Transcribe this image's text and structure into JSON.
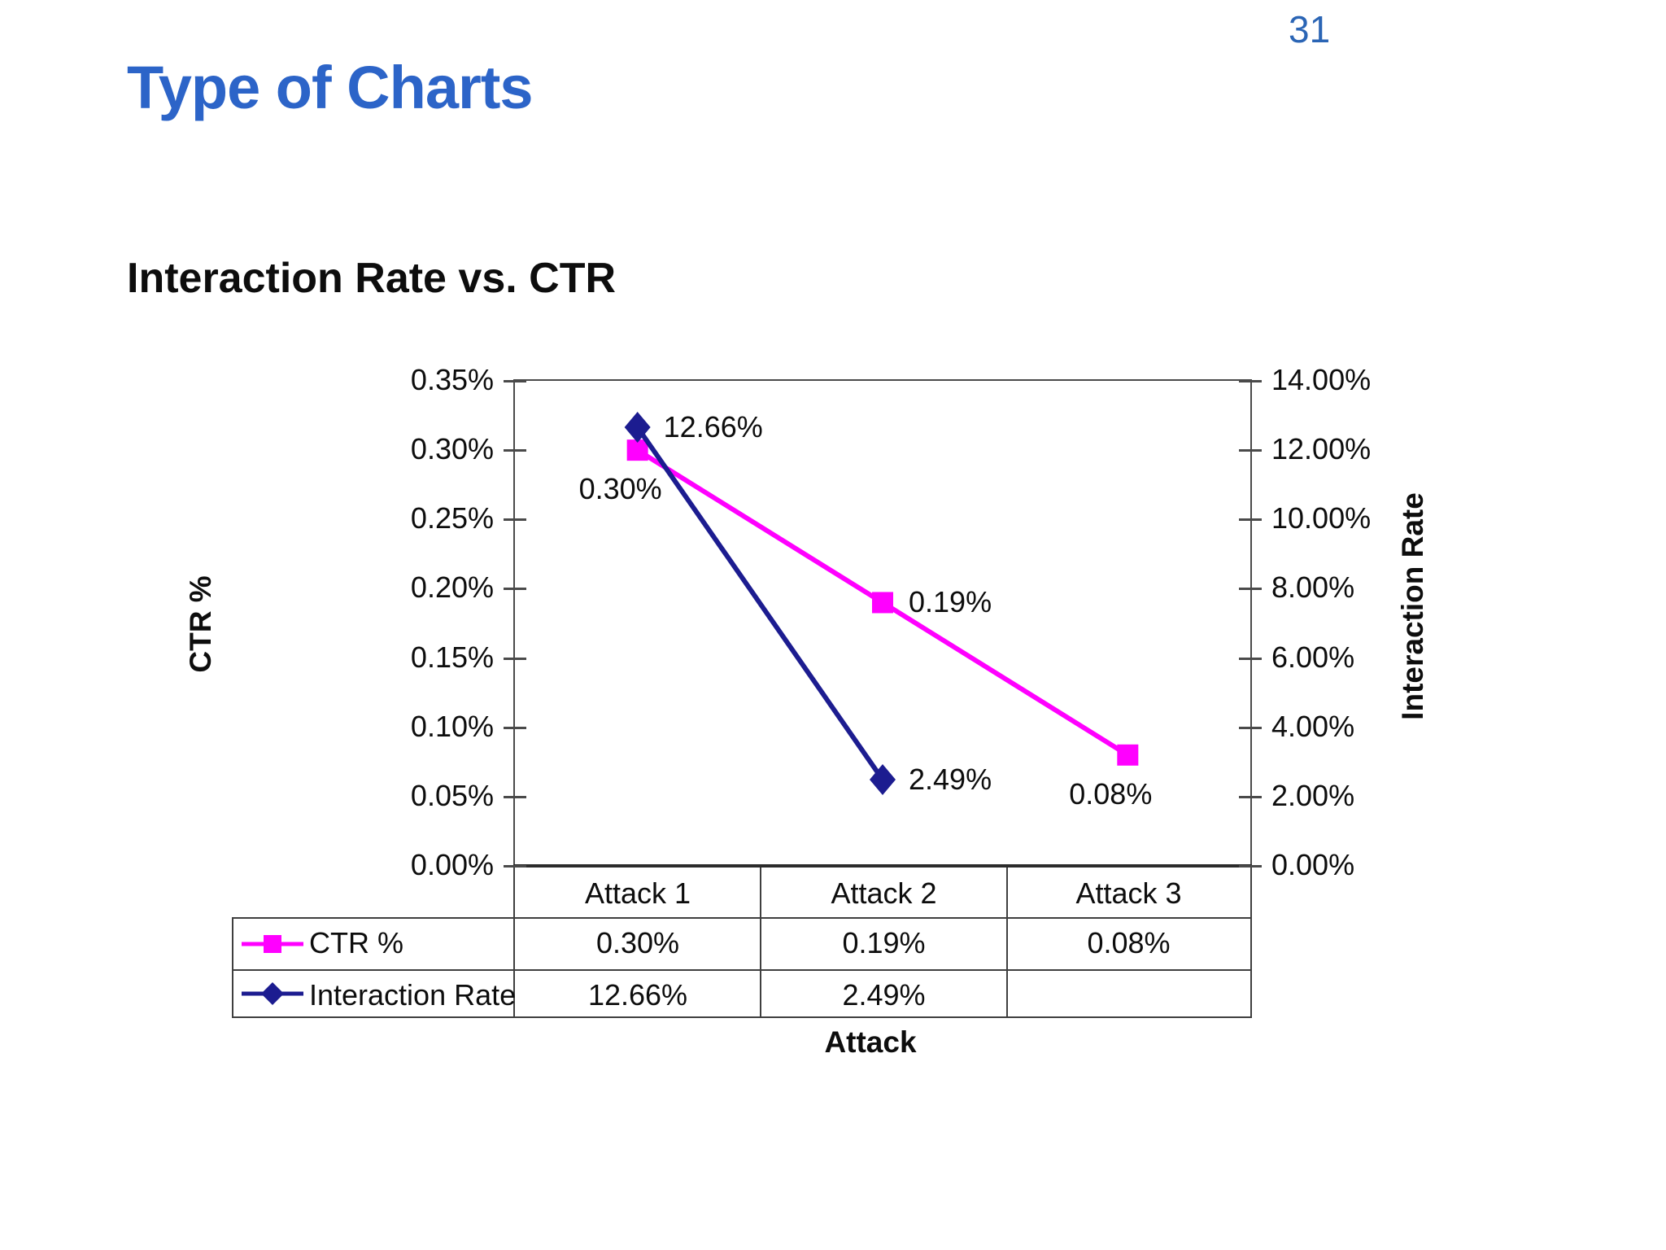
{
  "page": {
    "number": "31",
    "title": "Type of Charts",
    "subtitle": "Interaction Rate vs. CTR"
  },
  "colors": {
    "title_blue": "#2C64C8",
    "page_number_blue": "#2B65B5",
    "ctr_magenta": "#FF00FF",
    "interaction_navy": "#1C1C90",
    "axis_line_gray": "#4a4a4a"
  },
  "chart_data": {
    "type": "line",
    "title": "Interaction Rate vs. CTR",
    "categories": [
      "Attack 1",
      "Attack 2",
      "Attack 3"
    ],
    "series": [
      {
        "name": "CTR %",
        "axis": "left",
        "color": "#FF00FF",
        "marker": "square",
        "values": [
          0.3,
          0.19,
          0.08
        ],
        "labels": [
          "0.30%",
          "0.19%",
          "0.08%"
        ],
        "label_anchor": [
          "below-left",
          "right",
          "below-left"
        ]
      },
      {
        "name": "Interaction Rate",
        "axis": "right",
        "color": "#1C1C90",
        "marker": "diamond",
        "values": [
          12.66,
          2.49,
          null
        ],
        "labels": [
          "12.66%",
          "2.49%",
          ""
        ],
        "label_anchor": [
          "right",
          "right",
          null
        ]
      }
    ],
    "left_axis": {
      "title": "CTR %",
      "min": 0,
      "max": 0.35,
      "step": 0.05,
      "tick_labels": [
        "0.35%",
        "0.30%",
        "0.25%",
        "0.20%",
        "0.15%",
        "0.10%",
        "0.05%",
        "0.00%"
      ]
    },
    "right_axis": {
      "title": "Interaction Rate",
      "min": 0,
      "max": 14,
      "step": 2,
      "tick_labels": [
        "14.00%",
        "12.00%",
        "10.00%",
        "8.00%",
        "6.00%",
        "4.00%",
        "2.00%",
        "0.00%"
      ]
    },
    "x_axis": {
      "title": "Attack"
    },
    "data_table": {
      "rows": [
        {
          "legend": "CTR %",
          "values": [
            "0.30%",
            "0.19%",
            "0.08%"
          ]
        },
        {
          "legend": "Interaction Rate",
          "values": [
            "12.66%",
            "2.49%",
            ""
          ]
        }
      ]
    },
    "grid": false,
    "legend_position": "data-table-left"
  }
}
